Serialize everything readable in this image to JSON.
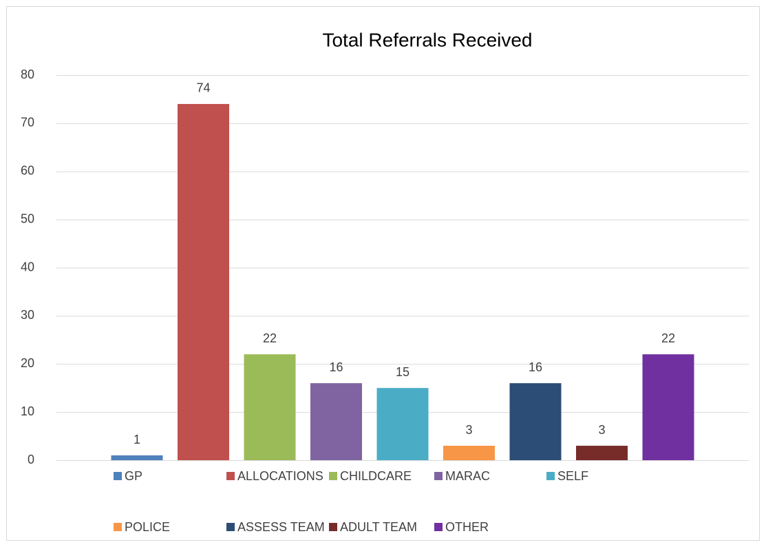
{
  "chart_data": {
    "type": "bar",
    "title": "Total Referrals Received",
    "series": [
      {
        "name": "GP",
        "color": "#4f81bd",
        "values": [
          1
        ]
      },
      {
        "name": "ALLOCATIONS",
        "color": "#c0504d",
        "values": [
          74
        ]
      },
      {
        "name": "CHILDCARE",
        "color": "#9bbb59",
        "values": [
          22
        ]
      },
      {
        "name": "MARAC",
        "color": "#8064a2",
        "values": [
          16
        ]
      },
      {
        "name": "SELF",
        "color": "#4bacc6",
        "values": [
          15
        ]
      },
      {
        "name": "POLICE",
        "color": "#f79646",
        "values": [
          3
        ]
      },
      {
        "name": "ASSESS TEAM",
        "color": "#2c4d75",
        "values": [
          16
        ]
      },
      {
        "name": "ADULT TEAM",
        "color": "#772c2a",
        "values": [
          3
        ]
      },
      {
        "name": "OTHER",
        "color": "#7030a0",
        "values": [
          22
        ]
      }
    ],
    "ylim": [
      0,
      80
    ],
    "yticks": [
      0,
      10,
      20,
      30,
      40,
      50,
      60,
      70,
      80
    ],
    "grid": true,
    "legend": "bottom"
  }
}
